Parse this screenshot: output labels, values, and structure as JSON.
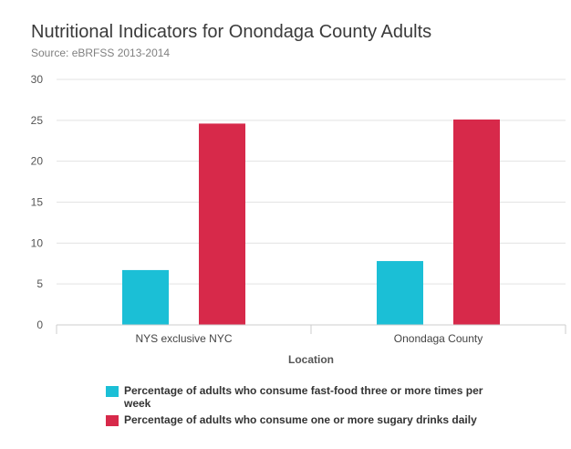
{
  "chart_data": {
    "type": "bar",
    "title": "Nutritional Indicators for Onondaga County Adults",
    "subtitle": "Source: eBRFSS 2013-2014",
    "categories": [
      "NYS exclusive NYC",
      "Onondaga County"
    ],
    "xlabel": "Location",
    "ylabel": "",
    "ylim": [
      0,
      30
    ],
    "yticks": [
      0,
      5,
      10,
      15,
      20,
      25,
      30
    ],
    "grid": true,
    "legend_position": "bottom",
    "series": [
      {
        "name": "Percentage of adults who consume fast-food three or more times per week",
        "color": "#1bbfd6",
        "values": [
          6.7,
          7.8
        ]
      },
      {
        "name": "Percentage of adults who consume one or more sugary drinks daily",
        "color": "#d7294a",
        "values": [
          24.6,
          25.1
        ]
      }
    ]
  }
}
